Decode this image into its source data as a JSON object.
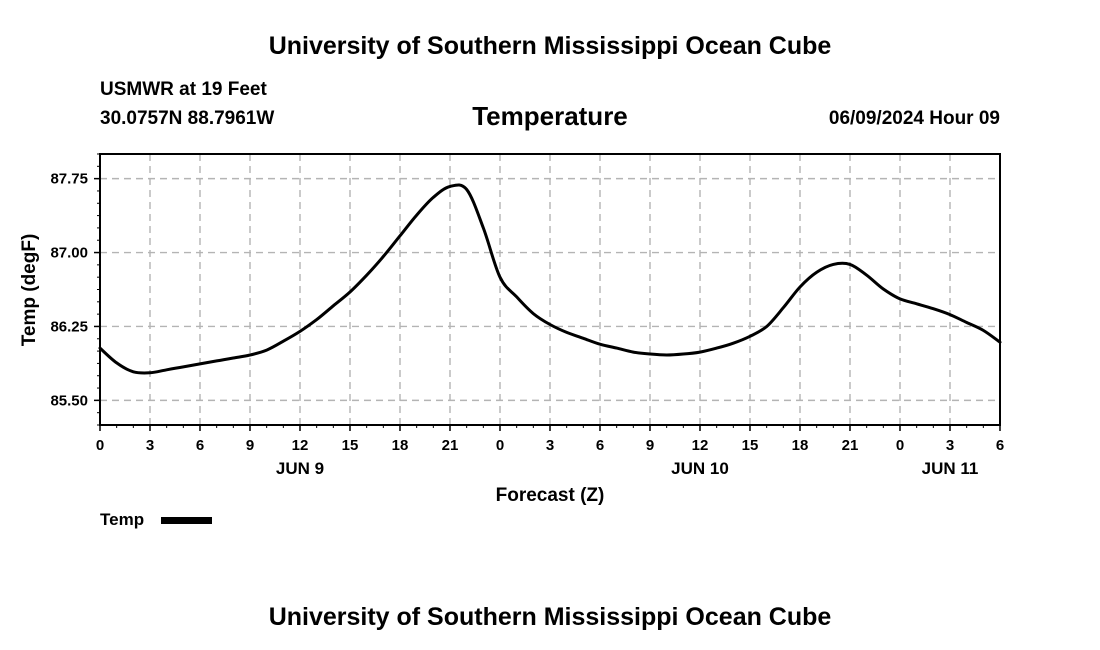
{
  "header": {
    "top_title": "University of Southern Mississippi Ocean Cube",
    "station": "USMWR at 19 Feet",
    "coords": "30.0757N  88.7961W",
    "datetime": "06/09/2024 Hour 09",
    "bottom_title": "University of Southern Mississippi Ocean Cube"
  },
  "legend": {
    "label": "Temp"
  },
  "colors": {
    "line": "#000000",
    "grid": "#b4b4b4"
  },
  "chart_data": {
    "type": "line",
    "title": "Temperature",
    "xlabel": "Forecast (Z)",
    "ylabel": "Temp (degF)",
    "xlim": [
      0,
      54
    ],
    "ylim": [
      85.25,
      88.0
    ],
    "grid": true,
    "x_ticks": [
      {
        "x": 0,
        "label": "0"
      },
      {
        "x": 3,
        "label": "3"
      },
      {
        "x": 6,
        "label": "6"
      },
      {
        "x": 9,
        "label": "9"
      },
      {
        "x": 12,
        "label": "12"
      },
      {
        "x": 15,
        "label": "15"
      },
      {
        "x": 18,
        "label": "18"
      },
      {
        "x": 21,
        "label": "21"
      },
      {
        "x": 24,
        "label": "0"
      },
      {
        "x": 27,
        "label": "3"
      },
      {
        "x": 30,
        "label": "6"
      },
      {
        "x": 33,
        "label": "9"
      },
      {
        "x": 36,
        "label": "12"
      },
      {
        "x": 39,
        "label": "15"
      },
      {
        "x": 42,
        "label": "18"
      },
      {
        "x": 45,
        "label": "21"
      },
      {
        "x": 48,
        "label": "0"
      },
      {
        "x": 51,
        "label": "3"
      },
      {
        "x": 54,
        "label": "6"
      }
    ],
    "day_labels": [
      {
        "x": 12,
        "label": "JUN 9"
      },
      {
        "x": 36,
        "label": "JUN 10"
      },
      {
        "x": 51,
        "label": "JUN 11"
      }
    ],
    "y_ticks": [
      {
        "y": 85.5,
        "label": "85.50"
      },
      {
        "y": 86.25,
        "label": "86.25"
      },
      {
        "y": 87.0,
        "label": "87.00"
      },
      {
        "y": 87.75,
        "label": "87.75"
      }
    ],
    "series": [
      {
        "name": "Temp",
        "x": [
          0,
          1,
          2,
          3,
          4,
          5,
          6,
          7,
          8,
          9,
          10,
          11,
          12,
          13,
          14,
          15,
          16,
          17,
          18,
          19,
          20,
          21,
          22,
          23,
          24,
          25,
          26,
          27,
          28,
          29,
          30,
          31,
          32,
          33,
          34,
          35,
          36,
          37,
          38,
          39,
          40,
          41,
          42,
          43,
          44,
          45,
          46,
          47,
          48,
          49,
          50,
          51,
          52,
          53,
          54
        ],
        "values": [
          86.03,
          85.88,
          85.79,
          85.78,
          85.81,
          85.84,
          85.87,
          85.9,
          85.93,
          85.96,
          86.01,
          86.1,
          86.2,
          86.32,
          86.46,
          86.6,
          86.77,
          86.96,
          87.17,
          87.38,
          87.56,
          87.67,
          87.64,
          87.25,
          86.75,
          86.55,
          86.38,
          86.27,
          86.19,
          86.13,
          86.07,
          86.03,
          85.99,
          85.97,
          85.96,
          85.97,
          85.99,
          86.03,
          86.08,
          86.15,
          86.25,
          86.44,
          86.65,
          86.8,
          86.88,
          86.88,
          86.77,
          86.63,
          86.53,
          86.48,
          86.43,
          86.37,
          86.29,
          86.21,
          86.09
        ]
      }
    ]
  }
}
